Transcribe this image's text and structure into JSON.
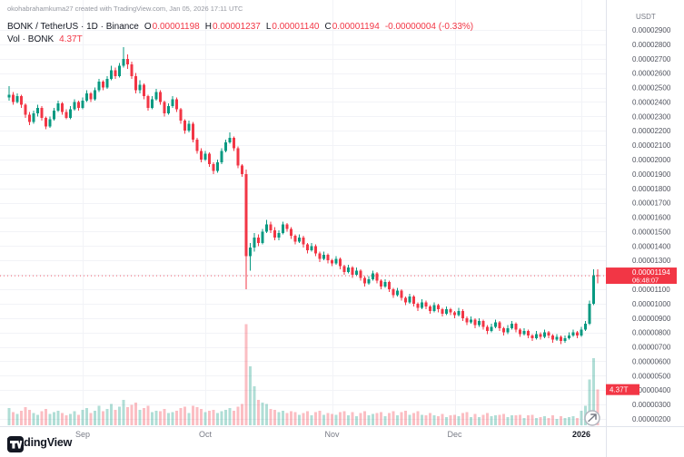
{
  "header": {
    "attribution": "okohabrahamkuma27 created with TradingView.com, Jan 05, 2026 17:11 UTC"
  },
  "legend": {
    "title": "BONK / TetherUS · 1D · Binance",
    "ohlc": {
      "o_label": "O",
      "o": "0.00001198",
      "h_label": "H",
      "h": "0.00001237",
      "l_label": "L",
      "l": "0.00001140",
      "c_label": "C",
      "c": "0.00001194",
      "change": "-0.00000004 (-0.33%)"
    },
    "volume_row": {
      "label": "Vol · BONK",
      "value": "4.37T"
    }
  },
  "price_scale": {
    "currency": "USDT",
    "ticks": [
      "0.00002900",
      "0.00002800",
      "0.00002700",
      "0.00002600",
      "0.00002500",
      "0.00002400",
      "0.00002300",
      "0.00002200",
      "0.00002100",
      "0.00002000",
      "0.00001900",
      "0.00001800",
      "0.00001700",
      "0.00001600",
      "0.00001500",
      "0.00001400",
      "0.00001300",
      "0.00001200",
      "0.00001100",
      "0.00001000",
      "0.00000900",
      "0.00000800",
      "0.00000700",
      "0.00000600",
      "0.00000500",
      "0.00000400",
      "0.00000300",
      "0.00000200"
    ],
    "price_label": {
      "value": "0.00001194",
      "countdown": "06:48:07"
    },
    "volume_label": "4.37T"
  },
  "time_scale": {
    "ticks": [
      {
        "label": "Sep",
        "index": 18,
        "strong": false
      },
      {
        "label": "Oct",
        "index": 48,
        "strong": false
      },
      {
        "label": "Nov",
        "index": 79,
        "strong": false
      },
      {
        "label": "Dec",
        "index": 109,
        "strong": false
      },
      {
        "label": "2026",
        "index": 140,
        "strong": true
      }
    ]
  },
  "footer": {
    "logo_text": "TradingView"
  },
  "colors": {
    "up": "#089981",
    "down": "#f23645",
    "grid": "#f2f3f7",
    "axis_border": "#e0e3eb",
    "axis_text": "#50535e",
    "muted": "#787b86",
    "dark": "#131722"
  },
  "chart_data": {
    "type": "candlestick",
    "title": "BONK / TetherUS · 1D · Binance",
    "ylabel": "Price (USDT)",
    "y_axis": {
      "top": "0.00002900",
      "bottom": "0.00000200",
      "currency": "USDT",
      "grid": true
    },
    "x_axis": {
      "months": [
        "Sep",
        "Oct",
        "Nov",
        "Dec",
        "2026"
      ]
    },
    "last_bar": {
      "open": "0.00001198",
      "high": "0.00001237",
      "low": "0.00001140",
      "close": "0.00001194",
      "change": "-0.00000004",
      "change_pct": "-0.33%",
      "volume": "4.37T"
    },
    "price_unit": "USDT x 1e-8 (value 2400 = 0.00002400)",
    "volume_unit": "T",
    "series_format": [
      "open",
      "high",
      "low",
      "close",
      "volume"
    ],
    "candles": [
      [
        2430,
        2510,
        2410,
        2450,
        2.1
      ],
      [
        2450,
        2470,
        2380,
        2400,
        1.6
      ],
      [
        2400,
        2460,
        2390,
        2440,
        1.4
      ],
      [
        2440,
        2450,
        2360,
        2380,
        1.8
      ],
      [
        2380,
        2390,
        2290,
        2310,
        2.2
      ],
      [
        2310,
        2330,
        2240,
        2260,
        1.9
      ],
      [
        2260,
        2340,
        2250,
        2320,
        1.5
      ],
      [
        2320,
        2380,
        2300,
        2360,
        1.3
      ],
      [
        2360,
        2370,
        2270,
        2290,
        1.7
      ],
      [
        2290,
        2300,
        2210,
        2230,
        2.0
      ],
      [
        2230,
        2300,
        2220,
        2280,
        1.4
      ],
      [
        2280,
        2360,
        2270,
        2340,
        1.6
      ],
      [
        2340,
        2410,
        2330,
        2390,
        1.8
      ],
      [
        2390,
        2400,
        2310,
        2330,
        1.5
      ],
      [
        2330,
        2350,
        2280,
        2290,
        1.2
      ],
      [
        2290,
        2370,
        2280,
        2350,
        1.4
      ],
      [
        2350,
        2420,
        2340,
        2400,
        1.7
      ],
      [
        2400,
        2410,
        2340,
        2360,
        1.3
      ],
      [
        2360,
        2430,
        2350,
        2410,
        1.9
      ],
      [
        2410,
        2480,
        2400,
        2460,
        2.1
      ],
      [
        2460,
        2470,
        2400,
        2420,
        1.5
      ],
      [
        2420,
        2500,
        2410,
        2480,
        1.8
      ],
      [
        2480,
        2560,
        2470,
        2540,
        2.4
      ],
      [
        2540,
        2550,
        2480,
        2500,
        1.7
      ],
      [
        2500,
        2580,
        2490,
        2560,
        2.0
      ],
      [
        2560,
        2650,
        2550,
        2620,
        2.6
      ],
      [
        2620,
        2640,
        2560,
        2580,
        1.9
      ],
      [
        2580,
        2670,
        2570,
        2650,
        2.3
      ],
      [
        2650,
        2780,
        2640,
        2700,
        3.1
      ],
      [
        2700,
        2730,
        2630,
        2660,
        2.2
      ],
      [
        2660,
        2680,
        2560,
        2580,
        2.5
      ],
      [
        2580,
        2600,
        2460,
        2480,
        2.8
      ],
      [
        2480,
        2550,
        2460,
        2520,
        1.9
      ],
      [
        2520,
        2530,
        2420,
        2440,
        2.1
      ],
      [
        2440,
        2450,
        2340,
        2360,
        2.4
      ],
      [
        2360,
        2440,
        2350,
        2420,
        1.6
      ],
      [
        2420,
        2490,
        2410,
        2470,
        1.8
      ],
      [
        2470,
        2480,
        2380,
        2400,
        1.7
      ],
      [
        2400,
        2410,
        2300,
        2320,
        2.0
      ],
      [
        2320,
        2390,
        2310,
        2370,
        1.5
      ],
      [
        2370,
        2440,
        2360,
        2420,
        1.6
      ],
      [
        2420,
        2430,
        2330,
        2350,
        1.8
      ],
      [
        2350,
        2360,
        2250,
        2270,
        2.1
      ],
      [
        2270,
        2280,
        2180,
        2200,
        2.3
      ],
      [
        2200,
        2270,
        2190,
        2250,
        1.5
      ],
      [
        2250,
        2260,
        2120,
        2140,
        2.4
      ],
      [
        2140,
        2150,
        2040,
        2060,
        2.2
      ],
      [
        2060,
        2080,
        1980,
        2000,
        2.0
      ],
      [
        2000,
        2060,
        1990,
        2040,
        1.6
      ],
      [
        2040,
        2050,
        1950,
        1970,
        1.8
      ],
      [
        1970,
        1980,
        1900,
        1920,
        1.9
      ],
      [
        1920,
        2000,
        1910,
        1980,
        1.5
      ],
      [
        1980,
        2080,
        1970,
        2060,
        1.7
      ],
      [
        2060,
        2140,
        2050,
        2120,
        1.9
      ],
      [
        2120,
        2190,
        2110,
        2150,
        2.1
      ],
      [
        2150,
        2160,
        2060,
        2080,
        1.8
      ],
      [
        2080,
        2090,
        1940,
        1960,
        2.3
      ],
      [
        1960,
        1970,
        1880,
        1900,
        2.6
      ],
      [
        1900,
        1930,
        1100,
        1330,
        12.4
      ],
      [
        1330,
        1420,
        1230,
        1390,
        7.2
      ],
      [
        1390,
        1490,
        1360,
        1460,
        4.8
      ],
      [
        1460,
        1480,
        1400,
        1420,
        3.1
      ],
      [
        1420,
        1520,
        1410,
        1500,
        2.8
      ],
      [
        1500,
        1580,
        1490,
        1550,
        2.6
      ],
      [
        1550,
        1570,
        1490,
        1510,
        2.0
      ],
      [
        1510,
        1530,
        1440,
        1460,
        1.9
      ],
      [
        1460,
        1510,
        1440,
        1490,
        1.6
      ],
      [
        1490,
        1570,
        1480,
        1550,
        1.8
      ],
      [
        1550,
        1560,
        1500,
        1520,
        1.5
      ],
      [
        1520,
        1530,
        1450,
        1470,
        1.7
      ],
      [
        1470,
        1480,
        1410,
        1430,
        1.6
      ],
      [
        1430,
        1480,
        1420,
        1460,
        1.3
      ],
      [
        1460,
        1470,
        1390,
        1410,
        1.5
      ],
      [
        1410,
        1420,
        1350,
        1370,
        1.7
      ],
      [
        1370,
        1420,
        1360,
        1400,
        1.2
      ],
      [
        1400,
        1410,
        1330,
        1350,
        1.6
      ],
      [
        1350,
        1360,
        1290,
        1310,
        1.8
      ],
      [
        1310,
        1360,
        1300,
        1340,
        1.3
      ],
      [
        1340,
        1350,
        1280,
        1300,
        1.5
      ],
      [
        1300,
        1310,
        1260,
        1280,
        1.4
      ],
      [
        1280,
        1330,
        1270,
        1310,
        1.3
      ],
      [
        1310,
        1320,
        1240,
        1260,
        1.6
      ],
      [
        1260,
        1270,
        1200,
        1220,
        1.7
      ],
      [
        1220,
        1270,
        1210,
        1250,
        1.2
      ],
      [
        1250,
        1260,
        1180,
        1200,
        1.6
      ],
      [
        1200,
        1250,
        1190,
        1230,
        1.1
      ],
      [
        1230,
        1240,
        1160,
        1180,
        1.5
      ],
      [
        1180,
        1190,
        1120,
        1140,
        1.7
      ],
      [
        1140,
        1190,
        1130,
        1170,
        1.2
      ],
      [
        1170,
        1230,
        1160,
        1210,
        1.4
      ],
      [
        1210,
        1220,
        1140,
        1160,
        1.5
      ],
      [
        1160,
        1170,
        1100,
        1120,
        1.6
      ],
      [
        1120,
        1170,
        1110,
        1150,
        1.1
      ],
      [
        1150,
        1160,
        1080,
        1100,
        1.5
      ],
      [
        1100,
        1110,
        1040,
        1060,
        1.7
      ],
      [
        1060,
        1110,
        1050,
        1090,
        1.2
      ],
      [
        1090,
        1100,
        1020,
        1040,
        1.6
      ],
      [
        1040,
        1050,
        990,
        1010,
        1.8
      ],
      [
        1010,
        1070,
        1000,
        1050,
        1.3
      ],
      [
        1050,
        1060,
        980,
        1000,
        1.5
      ],
      [
        1000,
        1010,
        950,
        970,
        1.7
      ],
      [
        970,
        1030,
        960,
        1010,
        1.3
      ],
      [
        1010,
        1020,
        960,
        980,
        1.2
      ],
      [
        980,
        990,
        930,
        950,
        1.5
      ],
      [
        950,
        1010,
        940,
        990,
        1.2
      ],
      [
        990,
        1000,
        940,
        960,
        1.1
      ],
      [
        960,
        970,
        910,
        930,
        1.4
      ],
      [
        930,
        980,
        920,
        960,
        1.0
      ],
      [
        960,
        970,
        920,
        940,
        1.2
      ],
      [
        940,
        950,
        900,
        920,
        1.3
      ],
      [
        920,
        970,
        910,
        950,
        1.1
      ],
      [
        950,
        960,
        880,
        900,
        1.5
      ],
      [
        900,
        910,
        850,
        870,
        1.6
      ],
      [
        870,
        910,
        860,
        890,
        1.0
      ],
      [
        890,
        900,
        830,
        850,
        1.4
      ],
      [
        850,
        900,
        840,
        880,
        1.0
      ],
      [
        880,
        890,
        820,
        840,
        1.3
      ],
      [
        840,
        850,
        790,
        810,
        1.5
      ],
      [
        810,
        860,
        800,
        840,
        1.1
      ],
      [
        840,
        890,
        830,
        870,
        1.2
      ],
      [
        870,
        880,
        810,
        830,
        1.3
      ],
      [
        830,
        840,
        780,
        800,
        1.4
      ],
      [
        800,
        850,
        790,
        830,
        1.0
      ],
      [
        830,
        880,
        820,
        860,
        1.2
      ],
      [
        860,
        870,
        800,
        820,
        1.2
      ],
      [
        820,
        830,
        770,
        790,
        1.3
      ],
      [
        790,
        830,
        780,
        810,
        0.9
      ],
      [
        810,
        820,
        760,
        780,
        1.2
      ],
      [
        780,
        790,
        740,
        760,
        1.3
      ],
      [
        760,
        810,
        750,
        790,
        0.9
      ],
      [
        790,
        800,
        750,
        770,
        1.0
      ],
      [
        770,
        820,
        760,
        800,
        1.1
      ],
      [
        800,
        810,
        760,
        780,
        0.9
      ],
      [
        780,
        790,
        730,
        750,
        1.2
      ],
      [
        750,
        790,
        740,
        770,
        0.8
      ],
      [
        770,
        780,
        720,
        740,
        1.1
      ],
      [
        740,
        780,
        730,
        760,
        0.9
      ],
      [
        760,
        800,
        750,
        780,
        1.0
      ],
      [
        780,
        820,
        770,
        800,
        1.1
      ],
      [
        800,
        810,
        760,
        780,
        0.9
      ],
      [
        780,
        840,
        770,
        820,
        1.8
      ],
      [
        820,
        880,
        810,
        860,
        2.4
      ],
      [
        860,
        1020,
        850,
        1000,
        5.6
      ],
      [
        1000,
        1240,
        990,
        1198,
        8.2
      ],
      [
        1198,
        1237,
        1140,
        1194,
        4.37
      ]
    ]
  }
}
